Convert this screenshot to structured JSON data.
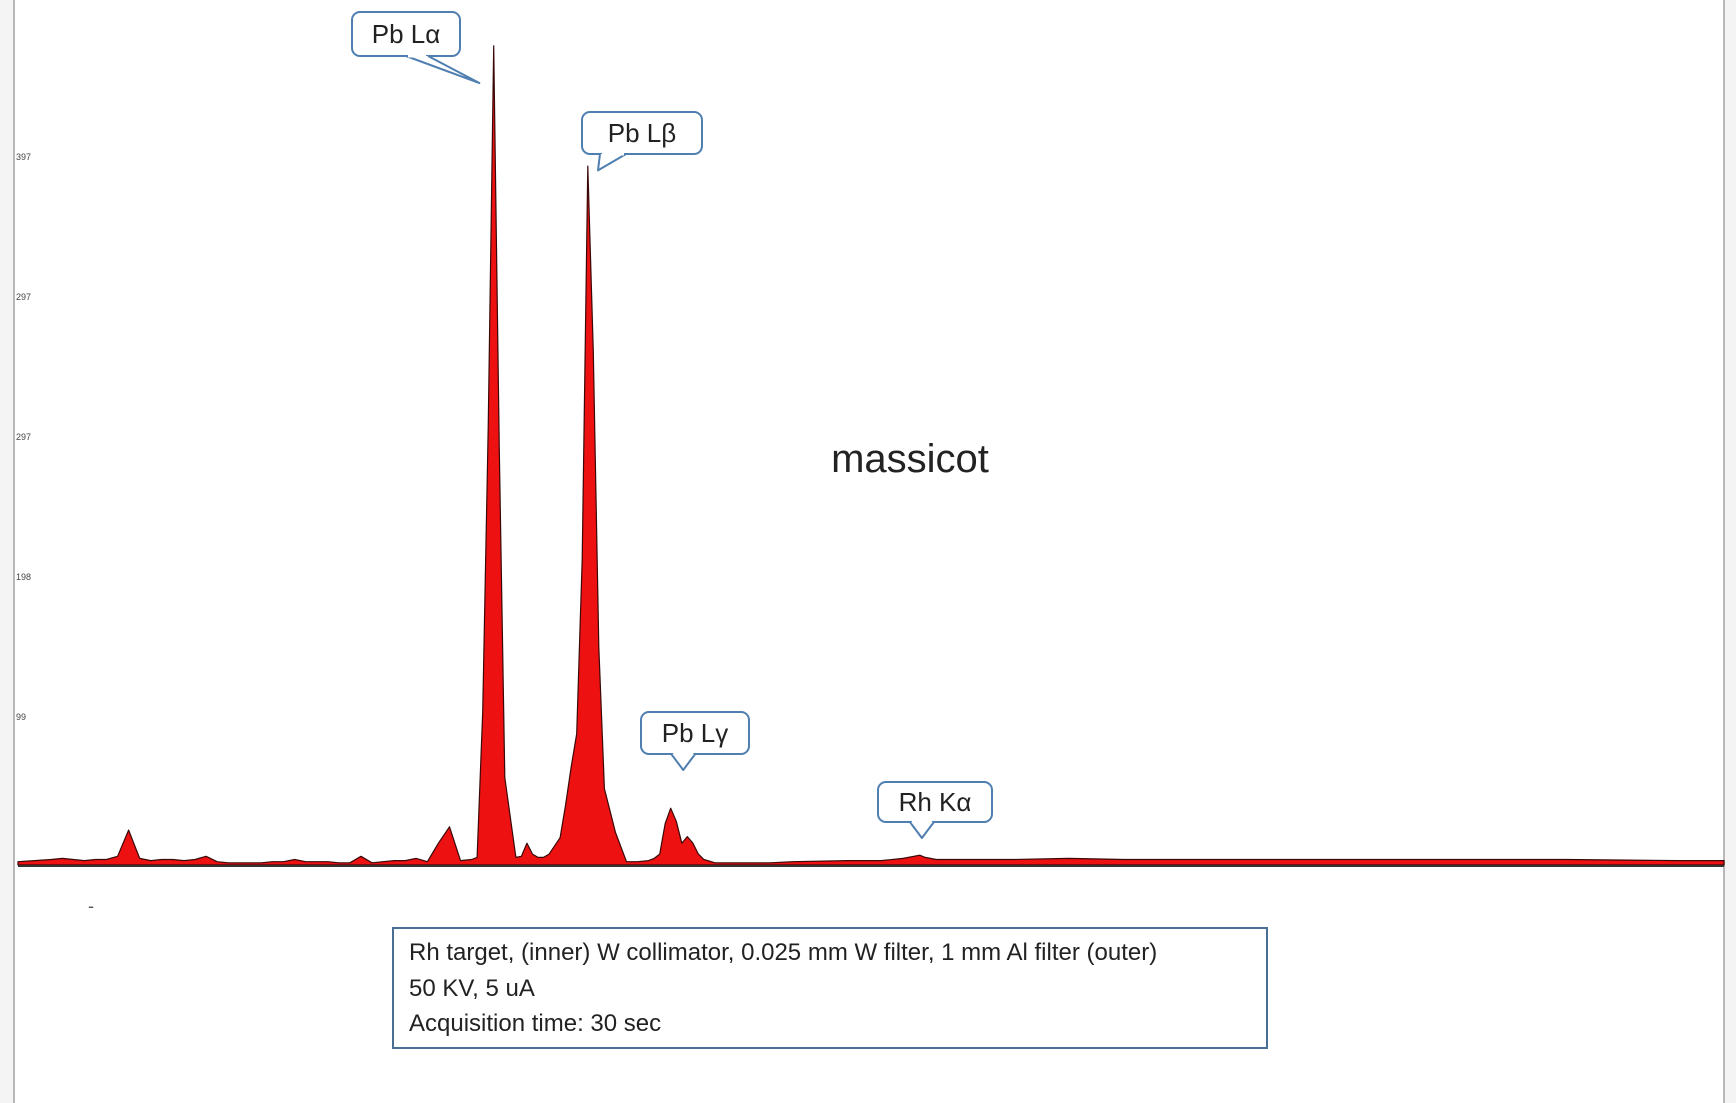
{
  "chart_data": {
    "type": "area",
    "title": "massicot",
    "xlabel": "",
    "ylabel": "",
    "y_tick_labels": [
      "397",
      "297",
      "297",
      "198",
      "99"
    ],
    "x": [
      0,
      15,
      30,
      40,
      50,
      60,
      70,
      80,
      90,
      100,
      110,
      120,
      130,
      140,
      150,
      160,
      170,
      180,
      190,
      200,
      210,
      220,
      230,
      240,
      250,
      260,
      270,
      280,
      290,
      300,
      310,
      320,
      330,
      340,
      350,
      360,
      370,
      380,
      390,
      400,
      410,
      415,
      420,
      425,
      430,
      435,
      440,
      450,
      455,
      460,
      465,
      470,
      475,
      480,
      490,
      495,
      500,
      505,
      510,
      515,
      520,
      525,
      530,
      540,
      550,
      560,
      570,
      575,
      580,
      585,
      590,
      595,
      600,
      605,
      610,
      615,
      620,
      630,
      640,
      660,
      680,
      700,
      750,
      780,
      800,
      815,
      820,
      830,
      860,
      900,
      950,
      1000,
      1100,
      1200,
      1300,
      1400,
      1500,
      1542
    ],
    "values": [
      3,
      4,
      5,
      6,
      5,
      4,
      5,
      5,
      8,
      32,
      6,
      4,
      5,
      5,
      4,
      5,
      8,
      3,
      2,
      2,
      2,
      2,
      3,
      3,
      5,
      3,
      3,
      3,
      2,
      2,
      8,
      2,
      3,
      4,
      4,
      6,
      3,
      20,
      35,
      4,
      5,
      7,
      140,
      400,
      750,
      380,
      80,
      7,
      8,
      20,
      10,
      7,
      7,
      10,
      25,
      55,
      90,
      120,
      280,
      640,
      470,
      200,
      70,
      30,
      3,
      3,
      4,
      6,
      10,
      38,
      52,
      40,
      20,
      26,
      20,
      10,
      5,
      2,
      2,
      2,
      2,
      3,
      4,
      4,
      6,
      9,
      7,
      5,
      5,
      5,
      6,
      5,
      5,
      5,
      5,
      5,
      4,
      4
    ],
    "xlim": [
      0,
      1542
    ],
    "ylim": [
      0,
      760
    ],
    "annotations": [
      {
        "label": "Pb Lα",
        "x": 417,
        "y": 716
      },
      {
        "label": "Pb Lβ",
        "x": 517,
        "y": 636
      },
      {
        "label": "Pb Lγ",
        "x": 592,
        "y": 86
      },
      {
        "label": "Rh Kα",
        "x": 804,
        "y": 10
      }
    ],
    "info_box": [
      "Rh target, (inner) W collimator, 0.025 mm W filter, 1 mm Al filter (outer)",
      "50 KV, 5 uA",
      "Acquisition time: 30 sec"
    ],
    "grid": false,
    "legend": "none",
    "colors": {
      "fill": "#ee1111",
      "outline": "#3a0808",
      "callout_border": "#4f7fb0",
      "axis": "#333333"
    }
  }
}
